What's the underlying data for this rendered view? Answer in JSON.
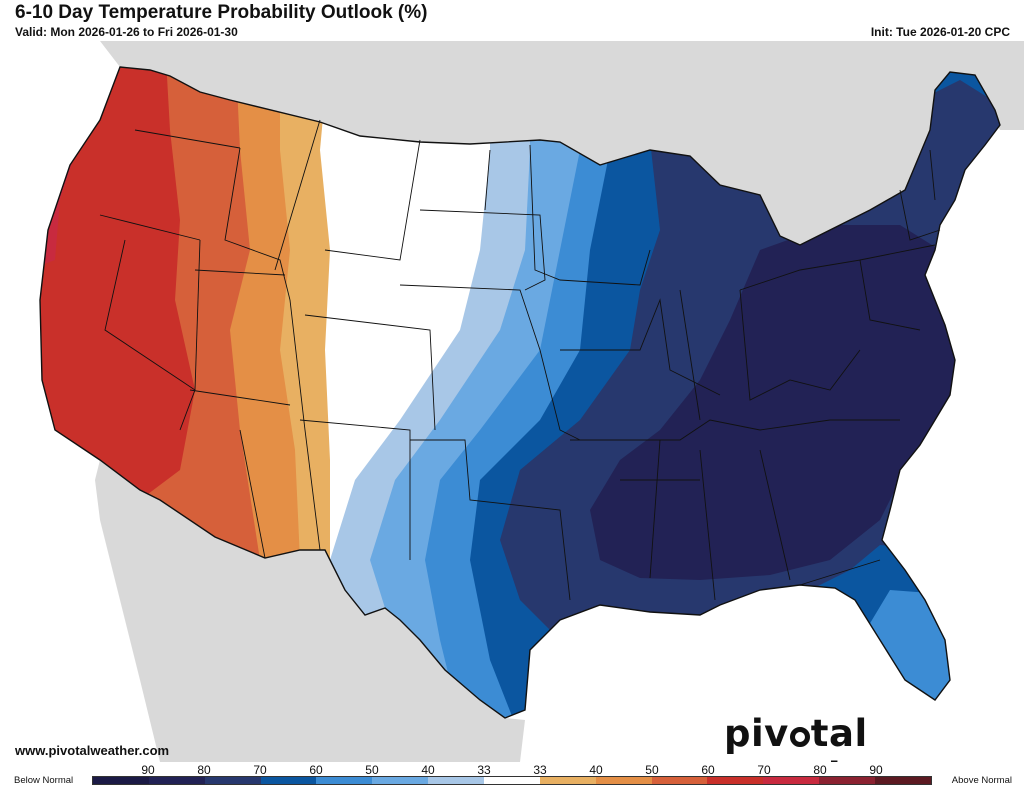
{
  "header": {
    "title": "6-10 Day Temperature Probability Outlook (%)",
    "valid": "Valid: Mon 2026-01-26 to Fri 2026-01-30",
    "init": "Init: Tue 2026-01-20 CPC"
  },
  "footer": {
    "site": "www.pivotalweather.com",
    "logo_prefix": "piv",
    "logo_suffix": "tal weather"
  },
  "legend": {
    "below_label": "Below Normal",
    "above_label": "Above Normal",
    "ticks": [
      "90",
      "80",
      "70",
      "60",
      "50",
      "40",
      "33",
      "33",
      "40",
      "50",
      "60",
      "70",
      "80",
      "90"
    ],
    "colors": [
      "#1b1a45",
      "#222255",
      "#27386e",
      "#0b56a0",
      "#3c8cd4",
      "#6aa9e2",
      "#a8c7e7",
      "#ffffff",
      "#e8b062",
      "#e48f46",
      "#d6603a",
      "#c9302a",
      "#c82a3f",
      "#8b2231",
      "#5c1a22"
    ]
  },
  "map": {
    "land_color": "#d9d9d9",
    "water_color": "#ffffff",
    "above_colors": {
      "a33": "#e8b062",
      "a40": "#e48f46",
      "a50": "#d6603a",
      "a60": "#c9302a",
      "a70": "#c82a3f"
    },
    "below_colors": {
      "b40": "#a8c7e7",
      "b50": "#6aa9e2",
      "b60": "#3c8cd4",
      "b70": "#0b56a0",
      "b80": "#27386e",
      "b90": "#222255"
    }
  }
}
